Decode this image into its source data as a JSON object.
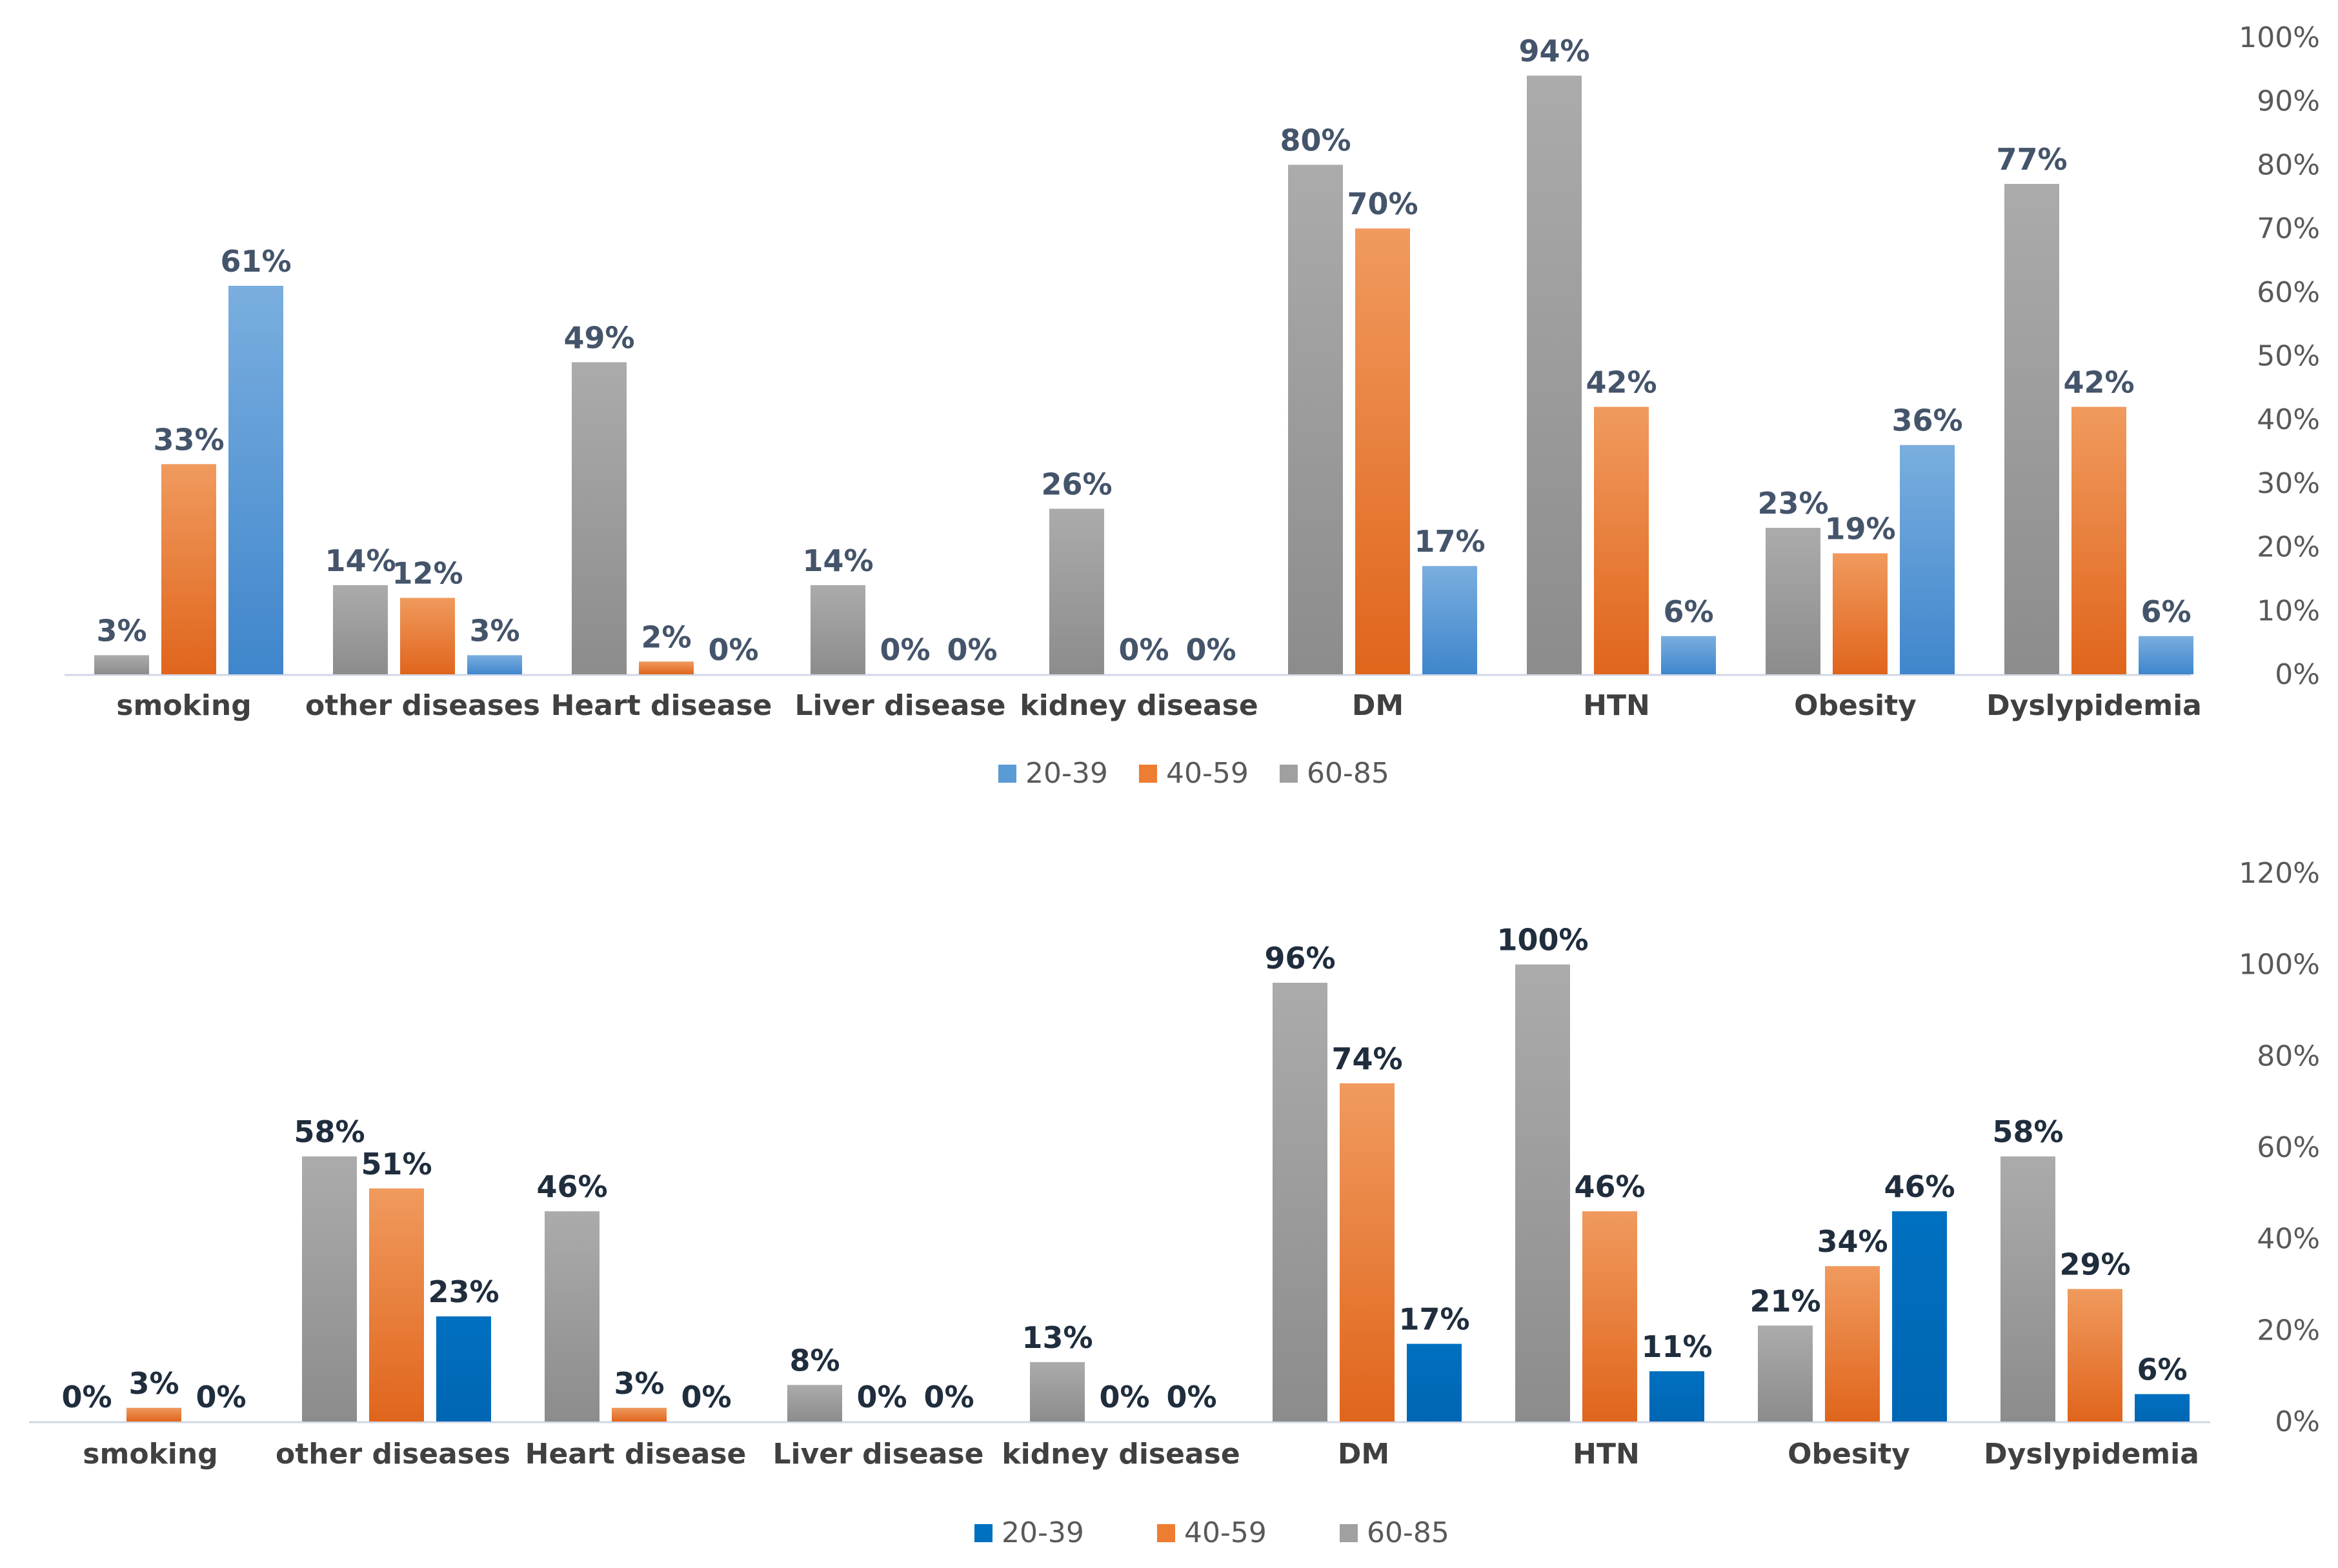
{
  "chart_data": [
    {
      "type": "bar",
      "categories": [
        "smoking",
        "other diseases",
        "Heart disease",
        "Liver disease",
        "kidney disease",
        "DM",
        "HTN",
        "Obesity",
        "Dyslypidemia"
      ],
      "series": [
        {
          "name": "60-85",
          "values": [
            3,
            14,
            49,
            14,
            26,
            80,
            94,
            23,
            77
          ],
          "color": "#a0a0a0"
        },
        {
          "name": "40-59",
          "values": [
            33,
            12,
            2,
            0,
            0,
            70,
            42,
            19,
            42
          ],
          "color": "#ed7d31"
        },
        {
          "name": "20-39",
          "values": [
            61,
            3,
            0,
            0,
            0,
            17,
            6,
            36,
            6
          ],
          "color": "#5b9bd5"
        }
      ],
      "data_labels": [
        [
          "3%",
          "14%",
          "49%",
          "14%",
          "26%",
          "80%",
          "94%",
          "23%",
          "77%"
        ],
        [
          "33%",
          "12%",
          "2%",
          "0%",
          "0%",
          "70%",
          "42%",
          "19%",
          "42%"
        ],
        [
          "61%",
          "3%",
          "0%",
          "0%",
          "0%",
          "17%",
          "6%",
          "36%",
          "6%"
        ]
      ],
      "ylim": [
        0,
        100
      ],
      "yticks": [
        "0%",
        "10%",
        "20%",
        "30%",
        "40%",
        "50%",
        "60%",
        "70%",
        "80%",
        "90%",
        "100%"
      ],
      "y_axis_side": "right",
      "legend_order": [
        "20-39",
        "40-59",
        "60-85"
      ],
      "legend_position": "bottom",
      "label_color": "#44546a"
    },
    {
      "type": "bar",
      "categories": [
        "smoking",
        "other diseases",
        "Heart disease",
        "Liver disease",
        "kidney disease",
        "DM",
        "HTN",
        "Obesity",
        "Dyslypidemia"
      ],
      "series": [
        {
          "name": "60-85",
          "values": [
            0,
            58,
            46,
            8,
            13,
            96,
            100,
            21,
            58
          ],
          "color": "#a0a0a0"
        },
        {
          "name": "40-59",
          "values": [
            3,
            51,
            3,
            0,
            0,
            74,
            46,
            34,
            29
          ],
          "color": "#ed7d31"
        },
        {
          "name": "20-39",
          "values": [
            0,
            23,
            0,
            0,
            0,
            17,
            11,
            46,
            6
          ],
          "color": "#0070c0"
        }
      ],
      "data_labels": [
        [
          "0%",
          "58%",
          "46%",
          "8%",
          "13%",
          "96%",
          "100%",
          "21%",
          "58%"
        ],
        [
          "3%",
          "51%",
          "3%",
          "0%",
          "0%",
          "74%",
          "46%",
          "34%",
          "29%"
        ],
        [
          "0%",
          "23%",
          "0%",
          "0%",
          "0%",
          "17%",
          "11%",
          "46%",
          "6%"
        ]
      ],
      "ylim": [
        0,
        120
      ],
      "yticks": [
        "0%",
        "20%",
        "40%",
        "60%",
        "80%",
        "100%",
        "120%"
      ],
      "y_axis_side": "right",
      "legend_order": [
        "20-39",
        "40-59",
        "60-85"
      ],
      "legend_position": "bottom",
      "label_color": "#1f2d3d"
    }
  ]
}
